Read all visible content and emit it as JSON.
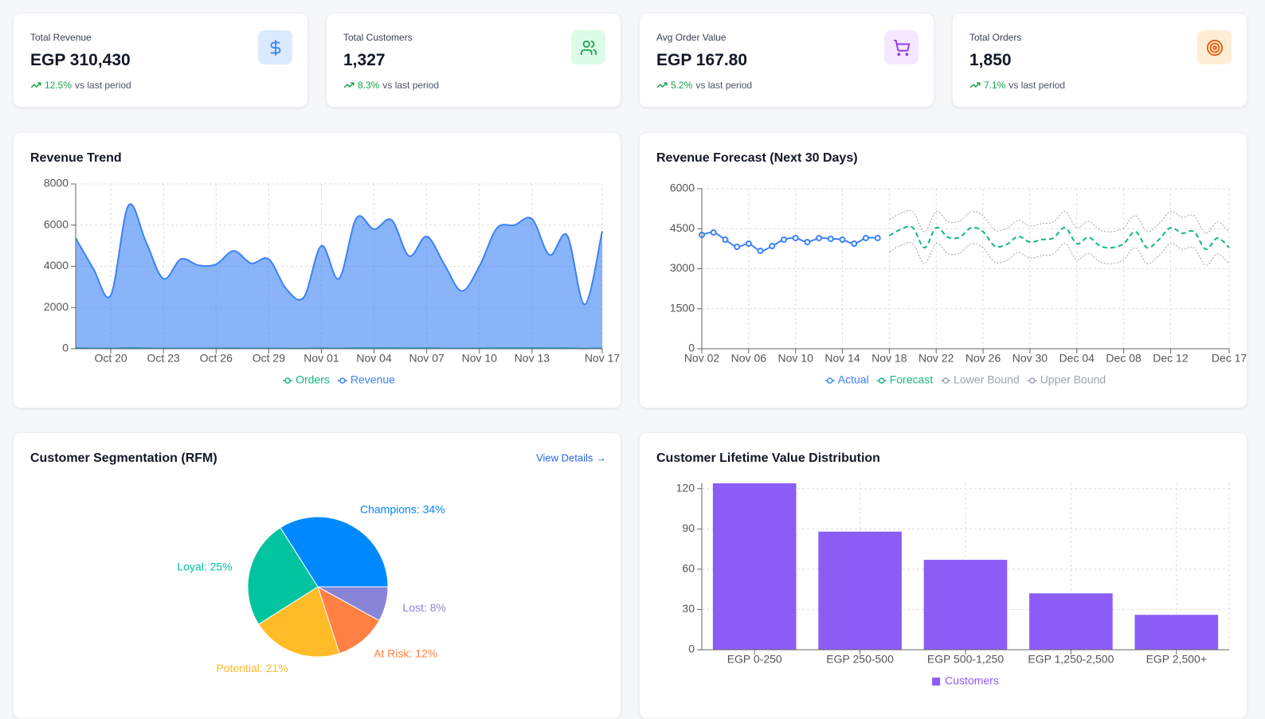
{
  "kpis": [
    {
      "title": "Total Revenue",
      "value": "EGP 310,430",
      "change": "12.5%",
      "suffix": "vs last period"
    },
    {
      "title": "Total Customers",
      "value": "1,327",
      "change": "8.3%",
      "suffix": "vs last period"
    },
    {
      "title": "Avg Order Value",
      "value": "EGP 167.80",
      "change": "5.2%",
      "suffix": "vs last period"
    },
    {
      "title": "Total Orders",
      "value": "1,850",
      "change": "7.1%",
      "suffix": "vs last period"
    }
  ],
  "chart_data": [
    {
      "type": "area",
      "title": "Revenue Trend",
      "categories": [
        null,
        null,
        "Oct 20",
        null,
        null,
        "Oct 23",
        null,
        null,
        "Oct 26",
        null,
        null,
        "Oct 29",
        null,
        null,
        "Nov 01",
        null,
        null,
        "Nov 04",
        null,
        null,
        "Nov 07",
        null,
        null,
        "Nov 10",
        null,
        null,
        "Nov 13",
        null,
        null,
        null,
        "Nov 17"
      ],
      "series": [
        {
          "name": "Orders",
          "color": "#10b981",
          "values": [
            32,
            23,
            15,
            41,
            31,
            20,
            26,
            24,
            24,
            28,
            25,
            26,
            17,
            15,
            30,
            20,
            38,
            35,
            37,
            27,
            32,
            24,
            17,
            24,
            35,
            36,
            37,
            27,
            33,
            13,
            34
          ]
        },
        {
          "name": "Revenue",
          "color": "#3b82f6",
          "values": [
            5370,
            3900,
            2600,
            6950,
            5200,
            3400,
            4350,
            4050,
            4100,
            4750,
            4150,
            4350,
            2900,
            2500,
            5000,
            3400,
            6350,
            5800,
            6250,
            4500,
            5450,
            4100,
            2800,
            4000,
            5850,
            6000,
            6300,
            4550,
            5500,
            2150,
            5700
          ]
        }
      ],
      "ylim": [
        0,
        8000
      ],
      "yticks": [
        0,
        2000,
        4000,
        6000,
        8000
      ],
      "grid": true,
      "legend": "bottom"
    },
    {
      "type": "line",
      "title": "Revenue Forecast (Next 30 Days)",
      "categories": [
        "Nov 02",
        null,
        null,
        null,
        "Nov 06",
        null,
        null,
        null,
        "Nov 10",
        null,
        null,
        null,
        "Nov 14",
        null,
        null,
        null,
        "Nov 18",
        null,
        null,
        null,
        "Nov 22",
        null,
        null,
        null,
        "Nov 26",
        null,
        null,
        null,
        "Nov 30",
        null,
        null,
        null,
        "Dec 04",
        null,
        null,
        null,
        "Dec 08",
        null,
        null,
        null,
        "Dec 12",
        null,
        null,
        null,
        null,
        "Dec 17"
      ],
      "series": [
        {
          "name": "Actual",
          "color": "#3b82f6",
          "markers": true,
          "values": [
            4270,
            4360,
            4090,
            3820,
            3940,
            3670,
            3850,
            4090,
            4150,
            4000,
            4150,
            4120,
            4090,
            3940,
            4150,
            4150,
            null,
            null,
            null,
            null,
            null,
            null,
            null,
            null,
            null,
            null,
            null,
            null,
            null,
            null,
            null,
            null,
            null,
            null,
            null,
            null,
            null,
            null,
            null,
            null,
            null,
            null,
            null,
            null,
            null,
            null
          ]
        },
        {
          "name": "Forecast",
          "color": "#10b981",
          "style": "dashed",
          "values": [
            null,
            null,
            null,
            null,
            null,
            null,
            null,
            null,
            null,
            null,
            null,
            null,
            null,
            null,
            null,
            null,
            4240,
            4480,
            4540,
            3790,
            4540,
            4180,
            4180,
            4540,
            4390,
            3850,
            3910,
            4210,
            4000,
            4090,
            4150,
            4540,
            3940,
            4180,
            3850,
            3790,
            3940,
            4390,
            3790,
            4090,
            4540,
            4330,
            4390,
            3730,
            4150,
            3790
          ]
        },
        {
          "name": "Lower Bound",
          "color": "#9ca3af",
          "style": "dotted",
          "values": [
            null,
            null,
            null,
            null,
            null,
            null,
            null,
            null,
            null,
            null,
            null,
            null,
            null,
            null,
            null,
            null,
            3640,
            3880,
            3940,
            3190,
            3940,
            3580,
            3580,
            3940,
            3790,
            3250,
            3310,
            3610,
            3400,
            3490,
            3550,
            3940,
            3340,
            3580,
            3250,
            3190,
            3340,
            3790,
            3190,
            3490,
            3940,
            3730,
            3790,
            3130,
            3550,
            3190
          ]
        },
        {
          "name": "Upper Bound",
          "color": "#9ca3af",
          "style": "dotted",
          "values": [
            null,
            null,
            null,
            null,
            null,
            null,
            null,
            null,
            null,
            null,
            null,
            null,
            null,
            null,
            null,
            null,
            4840,
            5080,
            5140,
            4390,
            5140,
            4780,
            4780,
            5140,
            4990,
            4450,
            4510,
            4810,
            4600,
            4690,
            4750,
            5140,
            4540,
            4780,
            4450,
            4390,
            4540,
            4990,
            4390,
            4690,
            5140,
            4930,
            4990,
            4330,
            4750,
            4390
          ]
        }
      ],
      "ylim": [
        0,
        6000
      ],
      "yticks": [
        0,
        1500,
        3000,
        4500,
        6000
      ],
      "grid": true,
      "legend": "bottom"
    },
    {
      "type": "pie",
      "title": "Customer Segmentation (RFM)",
      "link": "View Details →",
      "categories": [
        "Champions",
        "Loyal",
        "Potential",
        "At Risk",
        "Lost"
      ],
      "values": [
        34,
        25,
        21,
        12,
        8
      ],
      "value_labels": [
        "Champions: 34%",
        "Loyal: 25%",
        "Potential: 21%",
        "At Risk: 12%",
        "Lost: 8%"
      ],
      "colors": [
        "#0088fe",
        "#00c49f",
        "#ffbb28",
        "#ff8042",
        "#8884d8"
      ]
    },
    {
      "type": "bar",
      "title": "Customer Lifetime Value Distribution",
      "categories": [
        "EGP 0-250",
        "EGP 250-500",
        "EGP 500-1,250",
        "EGP 1,250-2,500",
        "EGP 2,500+"
      ],
      "series": [
        {
          "name": "Customers",
          "color": "#8b5cf6",
          "values": [
            124,
            88,
            67,
            42,
            26
          ]
        }
      ],
      "ylim": [
        0,
        124
      ],
      "yticks": [
        0,
        30,
        60,
        90,
        120
      ],
      "grid": true,
      "legend": "bottom"
    }
  ]
}
